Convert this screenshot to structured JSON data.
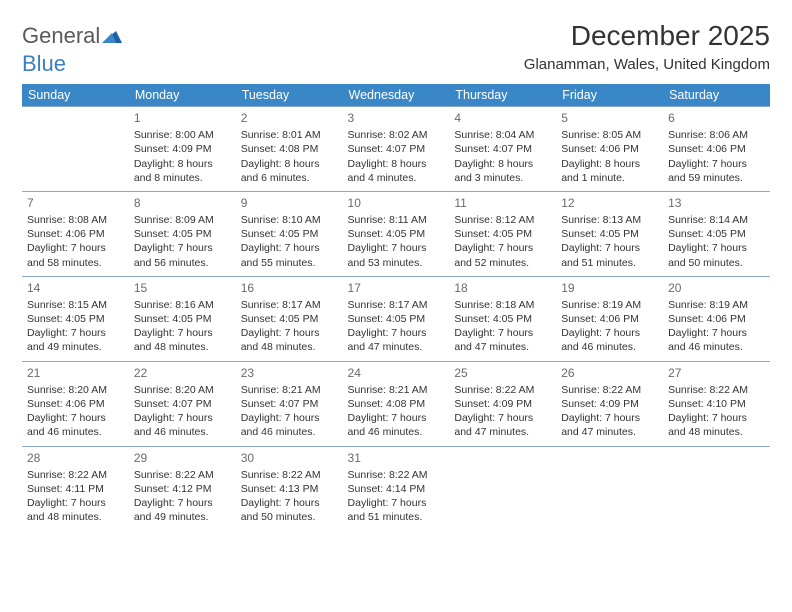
{
  "logo": {
    "text1": "General",
    "text2": "Blue"
  },
  "title": "December 2025",
  "location": "Glanamman, Wales, United Kingdom",
  "colors": {
    "header_bg": "#3a87c7",
    "header_text": "#ffffff",
    "border": "#8aa9c6",
    "logo_gray": "#5a5a5a",
    "logo_blue": "#3a7fc4"
  },
  "weekdays": [
    "Sunday",
    "Monday",
    "Tuesday",
    "Wednesday",
    "Thursday",
    "Friday",
    "Saturday"
  ],
  "weeks": [
    [
      null,
      {
        "n": "1",
        "sr": "Sunrise: 8:00 AM",
        "ss": "Sunset: 4:09 PM",
        "dl": "Daylight: 8 hours and 8 minutes."
      },
      {
        "n": "2",
        "sr": "Sunrise: 8:01 AM",
        "ss": "Sunset: 4:08 PM",
        "dl": "Daylight: 8 hours and 6 minutes."
      },
      {
        "n": "3",
        "sr": "Sunrise: 8:02 AM",
        "ss": "Sunset: 4:07 PM",
        "dl": "Daylight: 8 hours and 4 minutes."
      },
      {
        "n": "4",
        "sr": "Sunrise: 8:04 AM",
        "ss": "Sunset: 4:07 PM",
        "dl": "Daylight: 8 hours and 3 minutes."
      },
      {
        "n": "5",
        "sr": "Sunrise: 8:05 AM",
        "ss": "Sunset: 4:06 PM",
        "dl": "Daylight: 8 hours and 1 minute."
      },
      {
        "n": "6",
        "sr": "Sunrise: 8:06 AM",
        "ss": "Sunset: 4:06 PM",
        "dl": "Daylight: 7 hours and 59 minutes."
      }
    ],
    [
      {
        "n": "7",
        "sr": "Sunrise: 8:08 AM",
        "ss": "Sunset: 4:06 PM",
        "dl": "Daylight: 7 hours and 58 minutes."
      },
      {
        "n": "8",
        "sr": "Sunrise: 8:09 AM",
        "ss": "Sunset: 4:05 PM",
        "dl": "Daylight: 7 hours and 56 minutes."
      },
      {
        "n": "9",
        "sr": "Sunrise: 8:10 AM",
        "ss": "Sunset: 4:05 PM",
        "dl": "Daylight: 7 hours and 55 minutes."
      },
      {
        "n": "10",
        "sr": "Sunrise: 8:11 AM",
        "ss": "Sunset: 4:05 PM",
        "dl": "Daylight: 7 hours and 53 minutes."
      },
      {
        "n": "11",
        "sr": "Sunrise: 8:12 AM",
        "ss": "Sunset: 4:05 PM",
        "dl": "Daylight: 7 hours and 52 minutes."
      },
      {
        "n": "12",
        "sr": "Sunrise: 8:13 AM",
        "ss": "Sunset: 4:05 PM",
        "dl": "Daylight: 7 hours and 51 minutes."
      },
      {
        "n": "13",
        "sr": "Sunrise: 8:14 AM",
        "ss": "Sunset: 4:05 PM",
        "dl": "Daylight: 7 hours and 50 minutes."
      }
    ],
    [
      {
        "n": "14",
        "sr": "Sunrise: 8:15 AM",
        "ss": "Sunset: 4:05 PM",
        "dl": "Daylight: 7 hours and 49 minutes."
      },
      {
        "n": "15",
        "sr": "Sunrise: 8:16 AM",
        "ss": "Sunset: 4:05 PM",
        "dl": "Daylight: 7 hours and 48 minutes."
      },
      {
        "n": "16",
        "sr": "Sunrise: 8:17 AM",
        "ss": "Sunset: 4:05 PM",
        "dl": "Daylight: 7 hours and 48 minutes."
      },
      {
        "n": "17",
        "sr": "Sunrise: 8:17 AM",
        "ss": "Sunset: 4:05 PM",
        "dl": "Daylight: 7 hours and 47 minutes."
      },
      {
        "n": "18",
        "sr": "Sunrise: 8:18 AM",
        "ss": "Sunset: 4:05 PM",
        "dl": "Daylight: 7 hours and 47 minutes."
      },
      {
        "n": "19",
        "sr": "Sunrise: 8:19 AM",
        "ss": "Sunset: 4:06 PM",
        "dl": "Daylight: 7 hours and 46 minutes."
      },
      {
        "n": "20",
        "sr": "Sunrise: 8:19 AM",
        "ss": "Sunset: 4:06 PM",
        "dl": "Daylight: 7 hours and 46 minutes."
      }
    ],
    [
      {
        "n": "21",
        "sr": "Sunrise: 8:20 AM",
        "ss": "Sunset: 4:06 PM",
        "dl": "Daylight: 7 hours and 46 minutes."
      },
      {
        "n": "22",
        "sr": "Sunrise: 8:20 AM",
        "ss": "Sunset: 4:07 PM",
        "dl": "Daylight: 7 hours and 46 minutes."
      },
      {
        "n": "23",
        "sr": "Sunrise: 8:21 AM",
        "ss": "Sunset: 4:07 PM",
        "dl": "Daylight: 7 hours and 46 minutes."
      },
      {
        "n": "24",
        "sr": "Sunrise: 8:21 AM",
        "ss": "Sunset: 4:08 PM",
        "dl": "Daylight: 7 hours and 46 minutes."
      },
      {
        "n": "25",
        "sr": "Sunrise: 8:22 AM",
        "ss": "Sunset: 4:09 PM",
        "dl": "Daylight: 7 hours and 47 minutes."
      },
      {
        "n": "26",
        "sr": "Sunrise: 8:22 AM",
        "ss": "Sunset: 4:09 PM",
        "dl": "Daylight: 7 hours and 47 minutes."
      },
      {
        "n": "27",
        "sr": "Sunrise: 8:22 AM",
        "ss": "Sunset: 4:10 PM",
        "dl": "Daylight: 7 hours and 48 minutes."
      }
    ],
    [
      {
        "n": "28",
        "sr": "Sunrise: 8:22 AM",
        "ss": "Sunset: 4:11 PM",
        "dl": "Daylight: 7 hours and 48 minutes."
      },
      {
        "n": "29",
        "sr": "Sunrise: 8:22 AM",
        "ss": "Sunset: 4:12 PM",
        "dl": "Daylight: 7 hours and 49 minutes."
      },
      {
        "n": "30",
        "sr": "Sunrise: 8:22 AM",
        "ss": "Sunset: 4:13 PM",
        "dl": "Daylight: 7 hours and 50 minutes."
      },
      {
        "n": "31",
        "sr": "Sunrise: 8:22 AM",
        "ss": "Sunset: 4:14 PM",
        "dl": "Daylight: 7 hours and 51 minutes."
      },
      null,
      null,
      null
    ]
  ]
}
